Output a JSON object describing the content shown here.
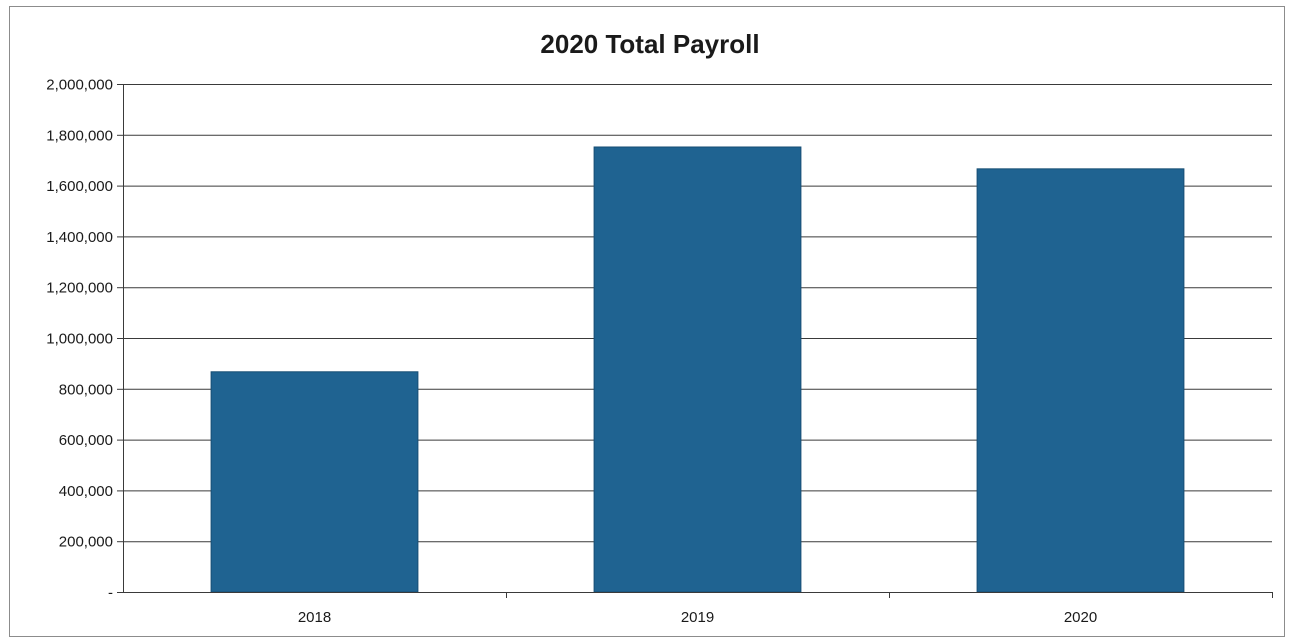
{
  "chart_data": {
    "type": "bar",
    "title": "2020 Total Payroll",
    "xlabel": "",
    "ylabel": "",
    "categories": [
      "2018",
      "2019",
      "2020"
    ],
    "values": [
      867000,
      1752000,
      1666000
    ],
    "ylim": [
      0,
      2000000
    ],
    "yticks": [
      0,
      200000,
      400000,
      600000,
      800000,
      1000000,
      1200000,
      1400000,
      1600000,
      1800000,
      2000000
    ],
    "ytick_labels": [
      "-",
      "200,000",
      "400,000",
      "600,000",
      "800,000",
      "1,000,000",
      "1,200,000",
      "1,400,000",
      "1,600,000",
      "1,800,000",
      "2,000,000"
    ],
    "grid": true,
    "legend": "none",
    "bar_color": "#1f6391"
  }
}
